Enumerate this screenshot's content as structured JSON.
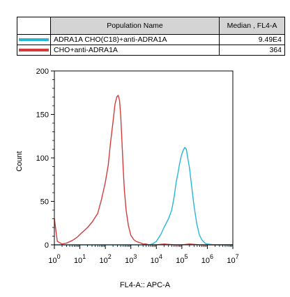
{
  "table": {
    "headers": {
      "population": "Population Name",
      "median": "Median , FL4-A"
    },
    "rows": [
      {
        "name": "ADRA1A CHO(C18)+anti-ADRA1A",
        "median": "9.49E4",
        "color": "#29b6d6"
      },
      {
        "name": "CHO+anti-ADRA1A",
        "median": "364",
        "color": "#d33b3b"
      }
    ]
  },
  "chart_data": {
    "type": "area",
    "xlabel": "FL4-A:: APC-A",
    "ylabel": "Count",
    "xscale": "log",
    "xlim": [
      1,
      10000000
    ],
    "ylim": [
      0,
      200
    ],
    "yticks": [
      0,
      50,
      100,
      150,
      200
    ],
    "xticks": [
      {
        "value": 1,
        "base": "10",
        "exp": "0"
      },
      {
        "value": 10,
        "base": "10",
        "exp": "1"
      },
      {
        "value": 100,
        "base": "10",
        "exp": "2"
      },
      {
        "value": 1000,
        "base": "10",
        "exp": "3"
      },
      {
        "value": 10000,
        "base": "10",
        "exp": "4"
      },
      {
        "value": 100000,
        "base": "10",
        "exp": "5"
      },
      {
        "value": 1000000,
        "base": "10",
        "exp": "6"
      },
      {
        "value": 10000000,
        "base": "10",
        "exp": "7"
      }
    ],
    "series": [
      {
        "name": "CHO+anti-ADRA1A",
        "color": "#d33b3b",
        "x": [
          1,
          1.3,
          2,
          3,
          5,
          8,
          12,
          20,
          30,
          50,
          70,
          100,
          130,
          160,
          200,
          240,
          280,
          320,
          360,
          400,
          450,
          500,
          560,
          650,
          800,
          1000,
          1300,
          1600,
          2000,
          2500,
          3000,
          4000,
          5000,
          7000,
          10000,
          20000,
          50000,
          100000,
          200000,
          500000,
          1000000,
          10000000
        ],
        "y": [
          30,
          4,
          1,
          2,
          5,
          9,
          14,
          20,
          26,
          36,
          52,
          72,
          92,
          118,
          142,
          162,
          170,
          172,
          166,
          148,
          118,
          88,
          62,
          40,
          22,
          11,
          6,
          4,
          3,
          2,
          1,
          1,
          0,
          0,
          0,
          1,
          0,
          0,
          1,
          0,
          0,
          0
        ]
      },
      {
        "name": "ADRA1A CHO(C18)+anti-ADRA1A",
        "color": "#29b6d6",
        "x": [
          1,
          1000,
          3000,
          5000,
          7000,
          10000,
          15000,
          20000,
          30000,
          40000,
          50000,
          60000,
          70000,
          80000,
          95000,
          110000,
          130000,
          150000,
          170000,
          200000,
          240000,
          300000,
          380000,
          480000,
          600000,
          800000,
          1000000,
          2000000,
          10000000
        ],
        "y": [
          0,
          0,
          0,
          0,
          1,
          4,
          12,
          20,
          30,
          40,
          55,
          72,
          82,
          92,
          102,
          108,
          112,
          110,
          100,
          88,
          68,
          45,
          25,
          12,
          6,
          2,
          1,
          0,
          0
        ]
      }
    ]
  }
}
